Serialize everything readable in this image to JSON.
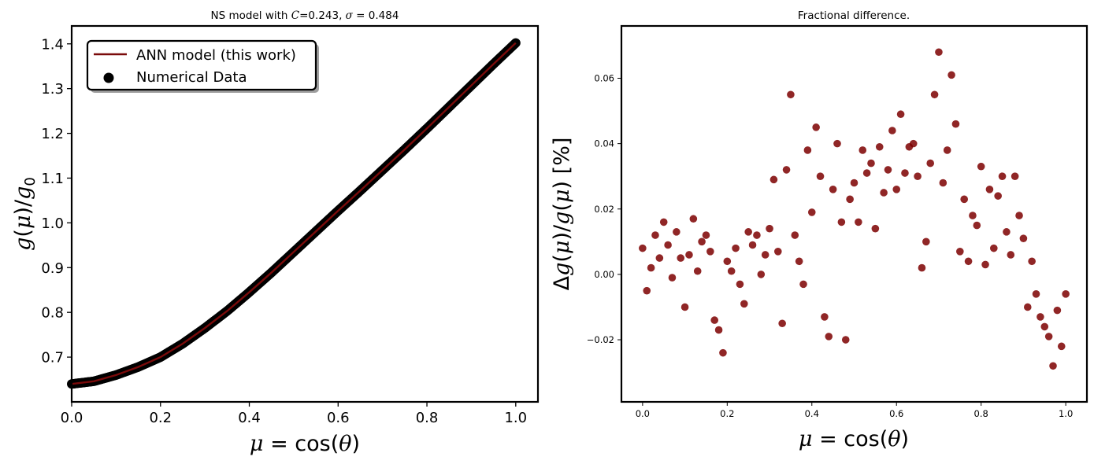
{
  "figure": {
    "left_title": "NS model with C=0.243, σ = 0.484",
    "right_title": "Fractional difference."
  },
  "colors": {
    "line": "#7a0a0a",
    "scatter_left": "#000000",
    "scatter_right": "#7d0000"
  },
  "chart_data": [
    {
      "type": "line",
      "title": "NS model with C=0.243, σ = 0.484",
      "xlabel": "μ = cos(θ)",
      "ylabel": "g(μ)/g₀",
      "xlim": [
        0.0,
        1.05
      ],
      "ylim": [
        0.6,
        1.44
      ],
      "xticks": [
        0.0,
        0.2,
        0.4,
        0.6,
        0.8,
        1.0
      ],
      "yticks": [
        0.7,
        0.8,
        0.9,
        1.0,
        1.1,
        1.2,
        1.3,
        1.4
      ],
      "xtick_labels": [
        "0.0",
        "0.2",
        "0.4",
        "0.6",
        "0.8",
        "1.0"
      ],
      "ytick_labels": [
        "0.7",
        "0.8",
        "0.9",
        "1.0",
        "1.1",
        "1.2",
        "1.3",
        "1.4"
      ],
      "grid": false,
      "legend": {
        "placement": "top-left",
        "entries": [
          "ANN model (this work)",
          "Numerical Data"
        ]
      },
      "series": [
        {
          "name": "ANN model (this work)",
          "kind": "line",
          "x": [
            0.0,
            0.05,
            0.1,
            0.15,
            0.2,
            0.25,
            0.3,
            0.35,
            0.4,
            0.45,
            0.5,
            0.55,
            0.6,
            0.65,
            0.7,
            0.75,
            0.8,
            0.85,
            0.9,
            0.95,
            1.0
          ],
          "y": [
            0.64,
            0.646,
            0.66,
            0.678,
            0.7,
            0.73,
            0.765,
            0.803,
            0.845,
            0.889,
            0.935,
            0.981,
            1.027,
            1.072,
            1.118,
            1.164,
            1.211,
            1.259,
            1.307,
            1.355,
            1.402
          ]
        },
        {
          "name": "Numerical Data",
          "kind": "scatter",
          "note_points": "dense sampling of the same curve, 500 points from mu=0 to 1"
        }
      ]
    },
    {
      "type": "scatter",
      "title": "Fractional difference.",
      "xlabel": "μ = cos(θ)",
      "ylabel": "Δg(μ)/g(μ)  [%]",
      "xlim": [
        -0.05,
        1.05
      ],
      "ylim": [
        -0.039,
        0.076
      ],
      "xticks": [
        0.0,
        0.2,
        0.4,
        0.6,
        0.8,
        1.0
      ],
      "yticks": [
        -0.02,
        0.0,
        0.02,
        0.04,
        0.06
      ],
      "xtick_labels": [
        "0.0",
        "0.2",
        "0.4",
        "0.6",
        "0.8",
        "1.0"
      ],
      "ytick_labels": [
        "−0.02",
        "0.00",
        "0.02",
        "0.04",
        "0.06"
      ],
      "grid": false,
      "series": [
        {
          "name": "",
          "x": [
            0.0,
            0.01,
            0.02,
            0.03,
            0.04,
            0.05,
            0.06,
            0.07,
            0.08,
            0.09,
            0.1,
            0.11,
            0.12,
            0.13,
            0.14,
            0.15,
            0.16,
            0.17,
            0.18,
            0.19,
            0.2,
            0.21,
            0.22,
            0.23,
            0.24,
            0.25,
            0.26,
            0.27,
            0.28,
            0.29,
            0.3,
            0.31,
            0.32,
            0.33,
            0.34,
            0.35,
            0.36,
            0.37,
            0.38,
            0.39,
            0.4,
            0.41,
            0.42,
            0.43,
            0.44,
            0.45,
            0.46,
            0.47,
            0.48,
            0.49,
            0.5,
            0.51,
            0.52,
            0.53,
            0.54,
            0.55,
            0.56,
            0.57,
            0.58,
            0.59,
            0.6,
            0.61,
            0.62,
            0.63,
            0.64,
            0.65,
            0.66,
            0.67,
            0.68,
            0.69,
            0.7,
            0.71,
            0.72,
            0.73,
            0.74,
            0.75,
            0.76,
            0.77,
            0.78,
            0.79,
            0.8,
            0.81,
            0.82,
            0.83,
            0.84,
            0.85,
            0.86,
            0.87,
            0.88,
            0.89,
            0.9,
            0.91,
            0.92,
            0.93,
            0.94,
            0.95,
            0.96,
            0.97,
            0.98,
            0.99,
            1.0
          ],
          "y": [
            0.008,
            -0.005,
            0.002,
            0.012,
            0.005,
            0.016,
            0.009,
            -0.001,
            0.013,
            0.005,
            -0.01,
            0.006,
            0.017,
            0.001,
            0.01,
            0.012,
            0.007,
            -0.014,
            -0.017,
            -0.024,
            0.004,
            0.001,
            0.008,
            -0.003,
            -0.009,
            0.013,
            0.009,
            0.012,
            0.0,
            0.006,
            0.014,
            0.029,
            0.007,
            -0.015,
            0.032,
            0.055,
            0.012,
            0.004,
            -0.003,
            0.038,
            0.019,
            0.045,
            0.03,
            -0.013,
            -0.019,
            0.026,
            0.04,
            0.016,
            -0.02,
            0.023,
            0.028,
            0.016,
            0.038,
            0.031,
            0.034,
            0.014,
            0.039,
            0.025,
            0.032,
            0.044,
            0.026,
            0.049,
            0.031,
            0.039,
            0.04,
            0.03,
            0.002,
            0.01,
            0.034,
            0.055,
            0.068,
            0.028,
            0.038,
            0.061,
            0.046,
            0.007,
            0.023,
            0.004,
            0.018,
            0.015,
            0.033,
            0.003,
            0.026,
            0.008,
            0.024,
            0.03,
            0.013,
            0.006,
            0.03,
            0.018,
            0.011,
            -0.01,
            0.004,
            -0.006,
            -0.013,
            -0.016,
            -0.019,
            -0.028,
            -0.011,
            -0.022,
            -0.006
          ]
        }
      ]
    }
  ]
}
